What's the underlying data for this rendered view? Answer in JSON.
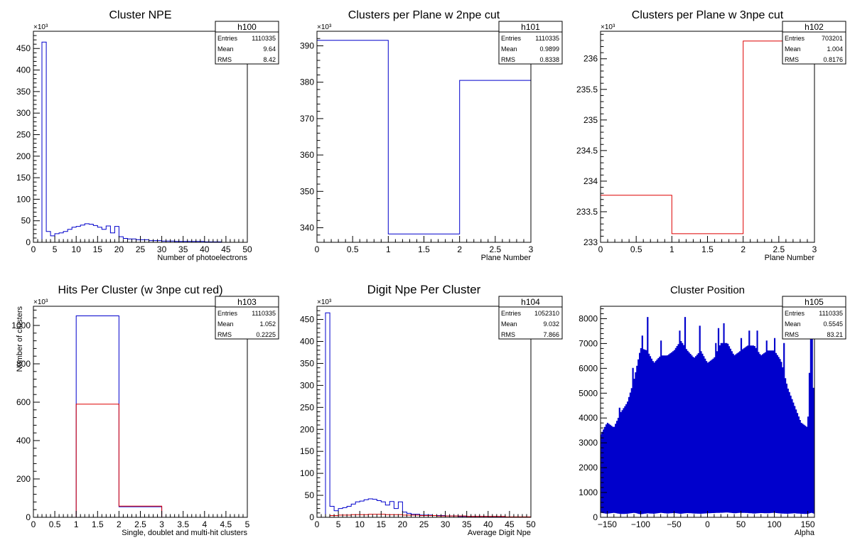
{
  "canvas": {
    "background": "#ffffff"
  },
  "chart_data": [
    {
      "type": "histogram",
      "title": "Cluster NPE",
      "xlabel": "Number of photoelectrons",
      "ylabel": "",
      "exponent": "×10³",
      "xlim": [
        0,
        50
      ],
      "ylim": [
        0,
        490
      ],
      "xticks": [
        0,
        5,
        10,
        15,
        20,
        25,
        30,
        35,
        40,
        45,
        50
      ],
      "yticks": [
        0,
        50,
        100,
        150,
        200,
        250,
        300,
        350,
        400,
        450
      ],
      "stats": {
        "name": "h100",
        "rows": [
          [
            "Entries",
            "1110335"
          ],
          [
            "Mean",
            "9.64"
          ],
          [
            "RMS",
            "8.42"
          ]
        ]
      },
      "series": [
        {
          "color": "#0000cc",
          "step": [
            [
              0,
              0
            ],
            [
              2,
              0
            ],
            [
              2,
              465
            ],
            [
              3,
              465
            ],
            [
              3,
              25
            ],
            [
              4,
              25
            ],
            [
              4,
              15
            ],
            [
              5,
              15
            ],
            [
              5,
              20
            ],
            [
              6,
              20
            ],
            [
              6,
              22
            ],
            [
              7,
              22
            ],
            [
              7,
              25
            ],
            [
              8,
              25
            ],
            [
              8,
              30
            ],
            [
              9,
              30
            ],
            [
              9,
              35
            ],
            [
              10,
              35
            ],
            [
              10,
              37
            ],
            [
              11,
              37
            ],
            [
              11,
              40
            ],
            [
              12,
              40
            ],
            [
              12,
              43
            ],
            [
              13,
              43
            ],
            [
              13,
              42
            ],
            [
              14,
              42
            ],
            [
              14,
              39
            ],
            [
              15,
              39
            ],
            [
              15,
              35
            ],
            [
              16,
              35
            ],
            [
              16,
              30
            ],
            [
              17,
              30
            ],
            [
              17,
              38
            ],
            [
              18,
              38
            ],
            [
              18,
              22
            ],
            [
              19,
              22
            ],
            [
              19,
              37
            ],
            [
              20,
              37
            ],
            [
              20,
              13
            ],
            [
              21,
              13
            ],
            [
              21,
              9
            ],
            [
              22,
              9
            ],
            [
              22,
              8
            ],
            [
              24,
              8
            ],
            [
              24,
              6
            ],
            [
              27,
              6
            ],
            [
              27,
              4
            ],
            [
              30,
              4
            ],
            [
              30,
              3
            ],
            [
              33,
              3
            ],
            [
              33,
              2
            ],
            [
              40,
              2
            ],
            [
              40,
              1
            ],
            [
              44,
              1
            ],
            [
              44,
              0
            ],
            [
              50,
              0
            ]
          ]
        }
      ]
    },
    {
      "type": "histogram",
      "title": "Clusters per Plane w 2npe cut",
      "xlabel": "Plane Number",
      "ylabel": "",
      "exponent": "×10³",
      "xlim": [
        0,
        3
      ],
      "ylim": [
        336,
        394
      ],
      "xticks": [
        0,
        0.5,
        1,
        1.5,
        2,
        2.5,
        3
      ],
      "yticks": [
        340,
        350,
        360,
        370,
        380,
        390
      ],
      "stats": {
        "name": "h101",
        "rows": [
          [
            "Entries",
            "1110335"
          ],
          [
            "Mean",
            "0.9899"
          ],
          [
            "RMS",
            "0.8338"
          ]
        ]
      },
      "series": [
        {
          "color": "#0000cc",
          "step": [
            [
              0,
              391.5
            ],
            [
              1,
              391.5
            ],
            [
              1,
              338.3
            ],
            [
              2,
              338.3
            ],
            [
              2,
              380.5
            ],
            [
              3,
              380.5
            ]
          ]
        }
      ]
    },
    {
      "type": "histogram",
      "title": "Clusters per Plane w 3npe cut",
      "xlabel": "Plane Number",
      "ylabel": "",
      "exponent": "×10³",
      "xlim": [
        0,
        3
      ],
      "ylim": [
        233,
        236.45
      ],
      "xticks": [
        0,
        0.5,
        1,
        1.5,
        2,
        2.5,
        3
      ],
      "yticks": [
        233,
        233.5,
        234,
        234.5,
        235,
        235.5,
        236
      ],
      "stats": {
        "name": "h102",
        "rows": [
          [
            "Entries",
            "703201"
          ],
          [
            "Mean",
            "1.004"
          ],
          [
            "RMS",
            "0.8176"
          ]
        ]
      },
      "series": [
        {
          "color": "#dd0000",
          "step": [
            [
              0,
              233.77
            ],
            [
              1,
              233.77
            ],
            [
              1,
              233.14
            ],
            [
              2,
              233.14
            ],
            [
              2,
              236.29
            ],
            [
              3,
              236.29
            ]
          ]
        }
      ]
    },
    {
      "type": "histogram",
      "title": "Hits Per Cluster (w 3npe cut red)",
      "xlabel": "Single, doublet and multi-hit clusters",
      "ylabel": "Number of clusters",
      "exponent": "×10³",
      "xlim": [
        0,
        5
      ],
      "ylim": [
        0,
        1100
      ],
      "xticks": [
        0,
        0.5,
        1,
        1.5,
        2,
        2.5,
        3,
        3.5,
        4,
        4.5,
        5
      ],
      "yticks": [
        0,
        200,
        400,
        600,
        800,
        1000
      ],
      "stats": {
        "name": "h103",
        "rows": [
          [
            "Entries",
            "1110335"
          ],
          [
            "Mean",
            "1.052"
          ],
          [
            "RMS",
            "0.2225"
          ]
        ]
      },
      "series": [
        {
          "color": "#0000cc",
          "step": [
            [
              0,
              0
            ],
            [
              1,
              0
            ],
            [
              1,
              1050
            ],
            [
              2,
              1050
            ],
            [
              2,
              55
            ],
            [
              3,
              55
            ],
            [
              3,
              0
            ],
            [
              5,
              0
            ]
          ]
        },
        {
          "color": "#dd0000",
          "step": [
            [
              0,
              0
            ],
            [
              1,
              0
            ],
            [
              1,
              590
            ],
            [
              2,
              590
            ],
            [
              2,
              58
            ],
            [
              3,
              58
            ],
            [
              3,
              0
            ],
            [
              5,
              0
            ]
          ]
        }
      ]
    },
    {
      "type": "histogram",
      "title": "Digit Npe Per Cluster",
      "xlabel": "Average Digit Npe",
      "ylabel": "",
      "exponent": "×10³",
      "xlim": [
        0,
        50
      ],
      "ylim": [
        0,
        480
      ],
      "xticks": [
        0,
        5,
        10,
        15,
        20,
        25,
        30,
        35,
        40,
        45,
        50
      ],
      "yticks": [
        0,
        50,
        100,
        150,
        200,
        250,
        300,
        350,
        400,
        450
      ],
      "stats": {
        "name": "h104",
        "rows": [
          [
            "Entries",
            "1052310"
          ],
          [
            "Mean",
            "9.032"
          ],
          [
            "RMS",
            "7.866"
          ]
        ]
      },
      "series": [
        {
          "color": "#0000cc",
          "step": [
            [
              0,
              0
            ],
            [
              2,
              0
            ],
            [
              2,
              465
            ],
            [
              3,
              465
            ],
            [
              3,
              25
            ],
            [
              4,
              25
            ],
            [
              4,
              15
            ],
            [
              5,
              15
            ],
            [
              5,
              20
            ],
            [
              6,
              20
            ],
            [
              6,
              22
            ],
            [
              7,
              22
            ],
            [
              7,
              25
            ],
            [
              8,
              25
            ],
            [
              8,
              30
            ],
            [
              9,
              30
            ],
            [
              9,
              35
            ],
            [
              10,
              35
            ],
            [
              10,
              37
            ],
            [
              11,
              37
            ],
            [
              11,
              40
            ],
            [
              12,
              40
            ],
            [
              12,
              42
            ],
            [
              13,
              42
            ],
            [
              13,
              41
            ],
            [
              14,
              41
            ],
            [
              14,
              38
            ],
            [
              15,
              38
            ],
            [
              15,
              35
            ],
            [
              16,
              35
            ],
            [
              16,
              28
            ],
            [
              17,
              28
            ],
            [
              17,
              36
            ],
            [
              18,
              36
            ],
            [
              18,
              20
            ],
            [
              19,
              20
            ],
            [
              19,
              35
            ],
            [
              20,
              35
            ],
            [
              20,
              12
            ],
            [
              21,
              12
            ],
            [
              21,
              9
            ],
            [
              22,
              9
            ],
            [
              22,
              7
            ],
            [
              24,
              7
            ],
            [
              24,
              5
            ],
            [
              27,
              5
            ],
            [
              27,
              4
            ],
            [
              30,
              4
            ],
            [
              30,
              3
            ],
            [
              33,
              3
            ],
            [
              33,
              2
            ],
            [
              40,
              2
            ],
            [
              40,
              1
            ],
            [
              44,
              1
            ],
            [
              44,
              0
            ],
            [
              50,
              0
            ]
          ]
        },
        {
          "color": "#dd0000",
          "step": [
            [
              0,
              0
            ],
            [
              3,
              0
            ],
            [
              3,
              4
            ],
            [
              5,
              4
            ],
            [
              5,
              5
            ],
            [
              8,
              5
            ],
            [
              8,
              6
            ],
            [
              12,
              6
            ],
            [
              12,
              7
            ],
            [
              16,
              7
            ],
            [
              16,
              6
            ],
            [
              20,
              6
            ],
            [
              20,
              5
            ],
            [
              24,
              5
            ],
            [
              24,
              4
            ],
            [
              28,
              4
            ],
            [
              28,
              3
            ],
            [
              35,
              3
            ],
            [
              35,
              2
            ],
            [
              44,
              2
            ],
            [
              44,
              1
            ],
            [
              50,
              1
            ]
          ]
        }
      ]
    },
    {
      "type": "histogram",
      "title": "Cluster Position",
      "xlabel": "Alpha",
      "ylabel": "",
      "exponent": "",
      "xlim": [
        -160,
        160
      ],
      "ylim": [
        0,
        8500
      ],
      "xticks": [
        -150,
        -100,
        -50,
        0,
        50,
        100,
        150
      ],
      "yticks": [
        0,
        1000,
        2000,
        3000,
        4000,
        5000,
        6000,
        7000,
        8000
      ],
      "stats": {
        "name": "h105",
        "rows": [
          [
            "Entries",
            "1110335"
          ],
          [
            "Mean",
            "0.5545"
          ],
          [
            "RMS",
            "83.21"
          ]
        ]
      },
      "series": [
        {
          "color": "#0000cc",
          "comb": {
            "xmin": -160,
            "xmax": 160,
            "bins": 320,
            "tooth_width_bins": 1,
            "peaks_x": [
              -160,
              -150,
              -140,
              -130,
              -120,
              -110,
              -100,
              -90,
              -80,
              -70,
              -60,
              -50,
              -40,
              -30,
              -20,
              -10,
              0,
              10,
              20,
              30,
              40,
              50,
              60,
              70,
              80,
              90,
              100,
              110,
              120,
              130,
              140,
              150,
              155,
              160
            ],
            "peaks_y": [
              3300,
              3800,
              3600,
              4200,
              4600,
              5500,
              6800,
              6700,
              6200,
              6500,
              6500,
              6700,
              7100,
              6700,
              6400,
              6700,
              6200,
              6400,
              7000,
              7000,
              6500,
              6700,
              6900,
              6900,
              6500,
              6700,
              6700,
              6300,
              5200,
              4500,
              3800,
              3600,
              8000,
              4000
            ],
            "spikes_x": [
              -132,
              -112,
              -98,
              -90,
              -70,
              -42,
              -34,
              -12,
              12,
              16,
              24,
              50,
              62,
              74,
              88,
              100,
              114,
              157
            ],
            "spikes_y": [
              4400,
              6000,
              7300,
              8050,
              7100,
              7500,
              8050,
              7700,
              7000,
              7600,
              7800,
              7200,
              7500,
              7500,
              7100,
              7200,
              7000,
              7950
            ],
            "valley_y": [
              200,
              160,
              200,
              150,
              160,
              200,
              140,
              180,
              160,
              200,
              170,
              190,
              160,
              190,
              170,
              160,
              180,
              190,
              200,
              210,
              180,
              200,
              190,
              170,
              190,
              180,
              200,
              170,
              160,
              180,
              160,
              150,
              200,
              160
            ]
          }
        }
      ]
    }
  ]
}
